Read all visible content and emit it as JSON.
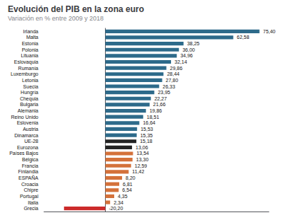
{
  "chart_data": {
    "type": "bar",
    "orientation": "horizontal",
    "title": "Evolución del PIB en la zona euro",
    "subtitle": "Variación en % entre 2009 y 2018",
    "categories": [
      "Irlanda",
      "Malta",
      "Estonia",
      "Polonia",
      "Lituania",
      "Eslovaquia",
      "Rumanía",
      "Luxemburgo",
      "Letonia",
      "Suecia",
      "Hungría",
      "Chequia",
      "Bulgaria",
      "Alemania",
      "Reino Unido",
      "Eslovenia",
      "Austria",
      "Dinamarca",
      "UE-28",
      "Eurozona",
      "Países Bajos",
      "Bélgica",
      "Francia",
      "Finlandia",
      "ESPAÑA",
      "Croacia",
      "Chipre",
      "Portugal",
      "Italia",
      "Grecia"
    ],
    "values": [
      75.4,
      62.58,
      38.25,
      36.0,
      34.96,
      32.14,
      29.86,
      28.44,
      27.8,
      26.33,
      23.95,
      22.27,
      21.66,
      19.86,
      18.51,
      16.64,
      15.53,
      15.35,
      15.18,
      13.06,
      13.54,
      13.3,
      12.59,
      11.42,
      8.2,
      6.81,
      6.54,
      4.35,
      2.34,
      -20.2
    ],
    "value_labels": [
      "75,40",
      "62,58",
      "38,25",
      "36,00",
      "34,96",
      "32,14",
      "29,86",
      "28,44",
      "27,80",
      "26,33",
      "23,95",
      "22,27",
      "21,66",
      "19,86",
      "18,51",
      "16,64",
      "15,53",
      "15,35",
      "15,18",
      "13,06",
      "13,54",
      "13,30",
      "12,59",
      "11,42",
      "8,20",
      "6,81",
      "6,54",
      "4,35",
      "2,34",
      "-20,20"
    ],
    "colors": [
      "#2d6a8a",
      "#2d6a8a",
      "#2d6a8a",
      "#2d6a8a",
      "#2d6a8a",
      "#2d6a8a",
      "#2d6a8a",
      "#2d6a8a",
      "#2d6a8a",
      "#2d6a8a",
      "#2d6a8a",
      "#2d6a8a",
      "#2d6a8a",
      "#2d6a8a",
      "#2d6a8a",
      "#2d6a8a",
      "#2d6a8a",
      "#2d6a8a",
      "#222222",
      "#222222",
      "#d4713a",
      "#d4713a",
      "#d4713a",
      "#d4713a",
      "#d4713a",
      "#d4713a",
      "#d4713a",
      "#d4713a",
      "#d4713a",
      "#cc2a2a"
    ],
    "xlim": [
      -30,
      80
    ],
    "data_labels": true,
    "tick_labels": "y",
    "grid": false
  }
}
